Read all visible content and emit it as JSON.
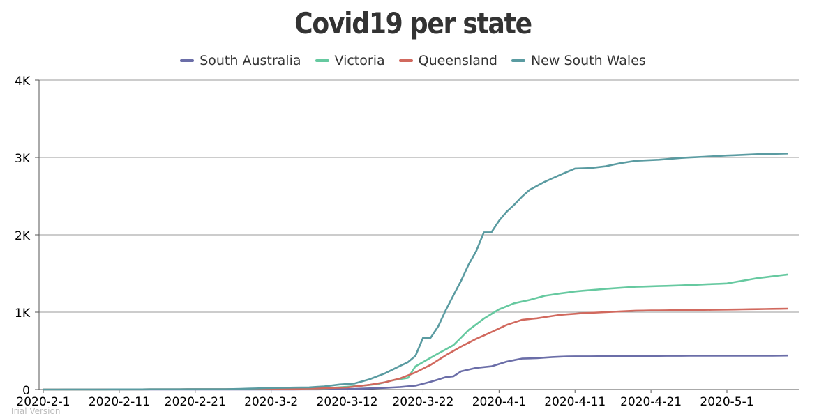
{
  "chart_data": {
    "type": "line",
    "title": "Covid19 per state",
    "legend_position": "top-center",
    "grid": "horizontal",
    "ylim": [
      0,
      4000
    ],
    "yticks": [
      {
        "value": 0,
        "label": "0"
      },
      {
        "value": 1000,
        "label": "1K"
      },
      {
        "value": 2000,
        "label": "2K"
      },
      {
        "value": 3000,
        "label": "3K"
      },
      {
        "value": 4000,
        "label": "4K"
      }
    ],
    "xlim": [
      "2020-02-01",
      "2020-05-10"
    ],
    "xticks": [
      "2020-2-1",
      "2020-2-11",
      "2020-2-21",
      "2020-3-2",
      "2020-3-12",
      "2020-3-22",
      "2020-4-1",
      "2020-4-11",
      "2020-4-21",
      "2020-5-1"
    ],
    "series": [
      {
        "name": "South Australia",
        "color": "#6b6ea8",
        "points": [
          [
            "2020-02-01",
            0
          ],
          [
            "2020-03-01",
            0
          ],
          [
            "2020-03-05",
            1
          ],
          [
            "2020-03-10",
            3
          ],
          [
            "2020-03-13",
            8
          ],
          [
            "2020-03-15",
            15
          ],
          [
            "2020-03-17",
            22
          ],
          [
            "2020-03-19",
            32
          ],
          [
            "2020-03-21",
            50
          ],
          [
            "2020-03-23",
            100
          ],
          [
            "2020-03-25",
            160
          ],
          [
            "2020-03-26",
            170
          ],
          [
            "2020-03-27",
            235
          ],
          [
            "2020-03-29",
            280
          ],
          [
            "2020-03-31",
            300
          ],
          [
            "2020-04-02",
            360
          ],
          [
            "2020-04-04",
            400
          ],
          [
            "2020-04-06",
            405
          ],
          [
            "2020-04-08",
            420
          ],
          [
            "2020-04-10",
            428
          ],
          [
            "2020-04-15",
            430
          ],
          [
            "2020-04-20",
            435
          ],
          [
            "2020-05-01",
            438
          ],
          [
            "2020-05-07",
            438
          ],
          [
            "2020-05-09",
            440
          ]
        ]
      },
      {
        "name": "Victoria",
        "color": "#66c9a0",
        "points": [
          [
            "2020-02-01",
            0
          ],
          [
            "2020-02-25",
            4
          ],
          [
            "2020-03-01",
            7
          ],
          [
            "2020-03-05",
            10
          ],
          [
            "2020-03-09",
            15
          ],
          [
            "2020-03-12",
            36
          ],
          [
            "2020-03-14",
            50
          ],
          [
            "2020-03-16",
            70
          ],
          [
            "2020-03-18",
            120
          ],
          [
            "2020-03-20",
            150
          ],
          [
            "2020-03-21",
            300
          ],
          [
            "2020-03-22",
            355
          ],
          [
            "2020-03-24",
            466
          ],
          [
            "2020-03-26",
            574
          ],
          [
            "2020-03-28",
            769
          ],
          [
            "2020-03-30",
            917
          ],
          [
            "2020-04-01",
            1036
          ],
          [
            "2020-04-03",
            1115
          ],
          [
            "2020-04-05",
            1158
          ],
          [
            "2020-04-07",
            1212
          ],
          [
            "2020-04-09",
            1241
          ],
          [
            "2020-04-11",
            1268
          ],
          [
            "2020-04-15",
            1301
          ],
          [
            "2020-04-19",
            1328
          ],
          [
            "2020-04-25",
            1346
          ],
          [
            "2020-05-01",
            1371
          ],
          [
            "2020-05-05",
            1440
          ],
          [
            "2020-05-09",
            1487
          ]
        ]
      },
      {
        "name": "Queensland",
        "color": "#d1695e",
        "points": [
          [
            "2020-02-01",
            0
          ],
          [
            "2020-03-01",
            5
          ],
          [
            "2020-03-08",
            15
          ],
          [
            "2020-03-12",
            27
          ],
          [
            "2020-03-15",
            61
          ],
          [
            "2020-03-17",
            94
          ],
          [
            "2020-03-19",
            144
          ],
          [
            "2020-03-21",
            221
          ],
          [
            "2020-03-23",
            319
          ],
          [
            "2020-03-25",
            443
          ],
          [
            "2020-03-27",
            555
          ],
          [
            "2020-03-29",
            656
          ],
          [
            "2020-03-31",
            743
          ],
          [
            "2020-04-02",
            835
          ],
          [
            "2020-04-04",
            900
          ],
          [
            "2020-04-06",
            921
          ],
          [
            "2020-04-09",
            965
          ],
          [
            "2020-04-12",
            987
          ],
          [
            "2020-04-15",
            1000
          ],
          [
            "2020-04-19",
            1019
          ],
          [
            "2020-04-25",
            1026
          ],
          [
            "2020-05-01",
            1033
          ],
          [
            "2020-05-09",
            1045
          ]
        ]
      },
      {
        "name": "New South Wales",
        "color": "#5a9ba1",
        "points": [
          [
            "2020-02-01",
            0
          ],
          [
            "2020-02-25",
            4
          ],
          [
            "2020-03-03",
            22
          ],
          [
            "2020-03-07",
            28
          ],
          [
            "2020-03-09",
            40
          ],
          [
            "2020-03-11",
            65
          ],
          [
            "2020-03-13",
            78
          ],
          [
            "2020-03-15",
            134
          ],
          [
            "2020-03-17",
            210
          ],
          [
            "2020-03-19",
            307
          ],
          [
            "2020-03-20",
            353
          ],
          [
            "2020-03-21",
            436
          ],
          [
            "2020-03-22",
            669
          ],
          [
            "2020-03-23",
            669
          ],
          [
            "2020-03-24",
            818
          ],
          [
            "2020-03-25",
            1029
          ],
          [
            "2020-03-26",
            1219
          ],
          [
            "2020-03-27",
            1405
          ],
          [
            "2020-03-28",
            1617
          ],
          [
            "2020-03-29",
            1791
          ],
          [
            "2020-03-30",
            2032
          ],
          [
            "2020-03-31",
            2032
          ],
          [
            "2020-04-01",
            2182
          ],
          [
            "2020-04-02",
            2298
          ],
          [
            "2020-04-03",
            2389
          ],
          [
            "2020-04-04",
            2493
          ],
          [
            "2020-04-05",
            2580
          ],
          [
            "2020-04-07",
            2686
          ],
          [
            "2020-04-09",
            2773
          ],
          [
            "2020-04-11",
            2857
          ],
          [
            "2020-04-13",
            2863
          ],
          [
            "2020-04-15",
            2886
          ],
          [
            "2020-04-17",
            2926
          ],
          [
            "2020-04-19",
            2957
          ],
          [
            "2020-04-22",
            2970
          ],
          [
            "2020-04-25",
            2994
          ],
          [
            "2020-04-28",
            3009
          ],
          [
            "2020-05-01",
            3025
          ],
          [
            "2020-05-05",
            3042
          ],
          [
            "2020-05-09",
            3051
          ]
        ]
      }
    ]
  },
  "watermark": "Trial Version"
}
